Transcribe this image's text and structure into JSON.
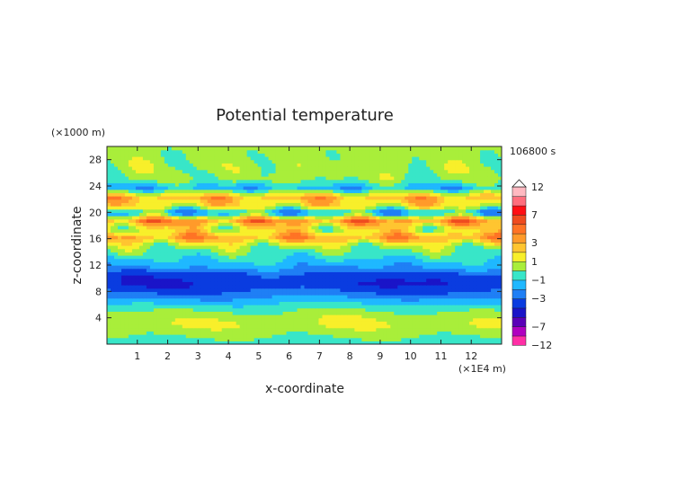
{
  "chart_data": {
    "type": "heatmap",
    "title": "Potential temperature",
    "time_label": "106800 s",
    "xlabel": "x-coordinate",
    "ylabel": "z-coordinate",
    "x_unit": "(×1E4 m)",
    "y_unit": "(×1000 m)",
    "xlim": [
      0,
      13
    ],
    "ylim": [
      0,
      30
    ],
    "x_ticks": [
      1,
      2,
      3,
      4,
      5,
      6,
      7,
      8,
      9,
      10,
      11,
      12
    ],
    "y_ticks": [
      4,
      8,
      12,
      16,
      20,
      24,
      28
    ],
    "colorbar": {
      "levels": [
        -12,
        -9,
        -7,
        -5,
        -4,
        -3,
        -2,
        -1,
        0,
        1,
        2,
        3,
        4,
        5,
        7,
        9,
        12
      ],
      "tick_labels": [
        "12",
        "7",
        "3",
        "1",
        "−1",
        "−3",
        "−7",
        "−12"
      ],
      "colors": [
        "#ff2fa6",
        "#b000c0",
        "#5a00b8",
        "#1a14c8",
        "#0a3ce0",
        "#1f7ff5",
        "#1fb8ff",
        "#38e6c8",
        "#a9ee3a",
        "#f8ef2a",
        "#ffc530",
        "#ff9a2a",
        "#ff7325",
        "#ef4b1f",
        "#ff0f14",
        "#ff6e7d",
        "#ffb9c1"
      ],
      "extend": "max"
    },
    "bands": [
      {
        "z": 29.5,
        "value": 0.3
      },
      {
        "z": 27.0,
        "value": 0.5
      },
      {
        "z": 25.0,
        "value": 0.2
      },
      {
        "z": 23.8,
        "value": -1.5
      },
      {
        "z": 22.3,
        "value": 2.8
      },
      {
        "z": 21.0,
        "value": 1.5
      },
      {
        "z": 20.0,
        "value": -1.8
      },
      {
        "z": 18.8,
        "value": 3.6
      },
      {
        "z": 17.5,
        "value": 1.2
      },
      {
        "z": 16.2,
        "value": 3.2
      },
      {
        "z": 15.0,
        "value": 0.6
      },
      {
        "z": 13.5,
        "value": -0.6
      },
      {
        "z": 11.8,
        "value": -1.8
      },
      {
        "z": 10.5,
        "value": -3.5
      },
      {
        "z": 9.0,
        "value": -3.8
      },
      {
        "z": 7.5,
        "value": -2.5
      },
      {
        "z": 6.0,
        "value": -0.8
      },
      {
        "z": 4.5,
        "value": 0.5
      },
      {
        "z": 3.0,
        "value": 1.0
      },
      {
        "z": 1.5,
        "value": 0.2
      },
      {
        "z": 0.0,
        "value": -0.5
      }
    ]
  }
}
